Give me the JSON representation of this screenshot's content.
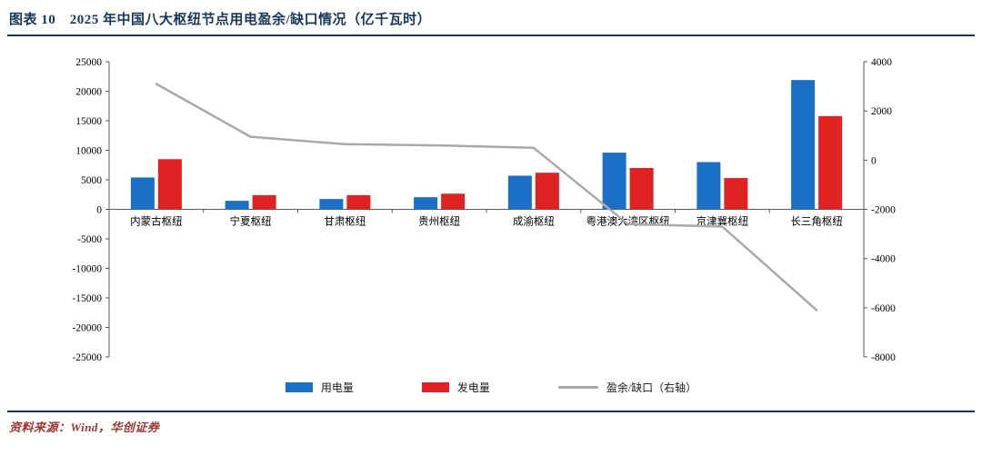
{
  "header": {
    "title": "图表 10　2025 年中国八大枢纽节点用电盈余/缺口情况（亿千瓦时）"
  },
  "footer": {
    "source": "资料来源：Wind，华创证券"
  },
  "legend": {
    "consumption": "用电量",
    "generation": "发电量",
    "surplus": "盈余/缺口（右轴）"
  },
  "colors": {
    "bar_blue": "#1B6FC4",
    "bar_red": "#E02222",
    "line_gray": "#A9A9A9",
    "title_navy": "#17375E",
    "source_red": "#9E352F",
    "axis": "#595959",
    "tick_text": "#000000"
  },
  "chart_data": {
    "type": "bar",
    "subtype": "bar+line combo, dual axis",
    "title": "2025 年中国八大枢纽节点用电盈余/缺口情况（亿千瓦时）",
    "xlabel": "",
    "ylabel_left": "",
    "ylabel_right": "",
    "categories": [
      "内蒙古枢纽",
      "宁夏枢纽",
      "甘肃枢纽",
      "贵州枢纽",
      "成渝枢纽",
      "粤港澳大湾区枢纽",
      "京津冀枢纽",
      "长三角枢纽"
    ],
    "series": [
      {
        "name": "用电量",
        "type": "bar",
        "axis": "left",
        "color_key": "bar_blue",
        "values": [
          5400,
          1450,
          1750,
          2050,
          5700,
          9600,
          8000,
          21900
        ]
      },
      {
        "name": "发电量",
        "type": "bar",
        "axis": "left",
        "color_key": "bar_red",
        "values": [
          8500,
          2400,
          2400,
          2650,
          6200,
          7000,
          5300,
          15800
        ]
      },
      {
        "name": "盈余/缺口（右轴）",
        "type": "line",
        "axis": "right",
        "color_key": "line_gray",
        "values": [
          3100,
          950,
          650,
          600,
          500,
          -2600,
          -2700,
          -6100
        ]
      }
    ],
    "left_axis": {
      "min": -25000,
      "max": 25000,
      "step": 5000,
      "ticks": [
        25000,
        20000,
        15000,
        10000,
        5000,
        0,
        -5000,
        -10000,
        -15000,
        -20000,
        -25000
      ]
    },
    "right_axis": {
      "min": -8000,
      "max": 4000,
      "step": 2000,
      "ticks": [
        4000,
        2000,
        0,
        -2000,
        -4000,
        -6000,
        -8000
      ]
    },
    "grid": false,
    "legend_position": "bottom"
  }
}
